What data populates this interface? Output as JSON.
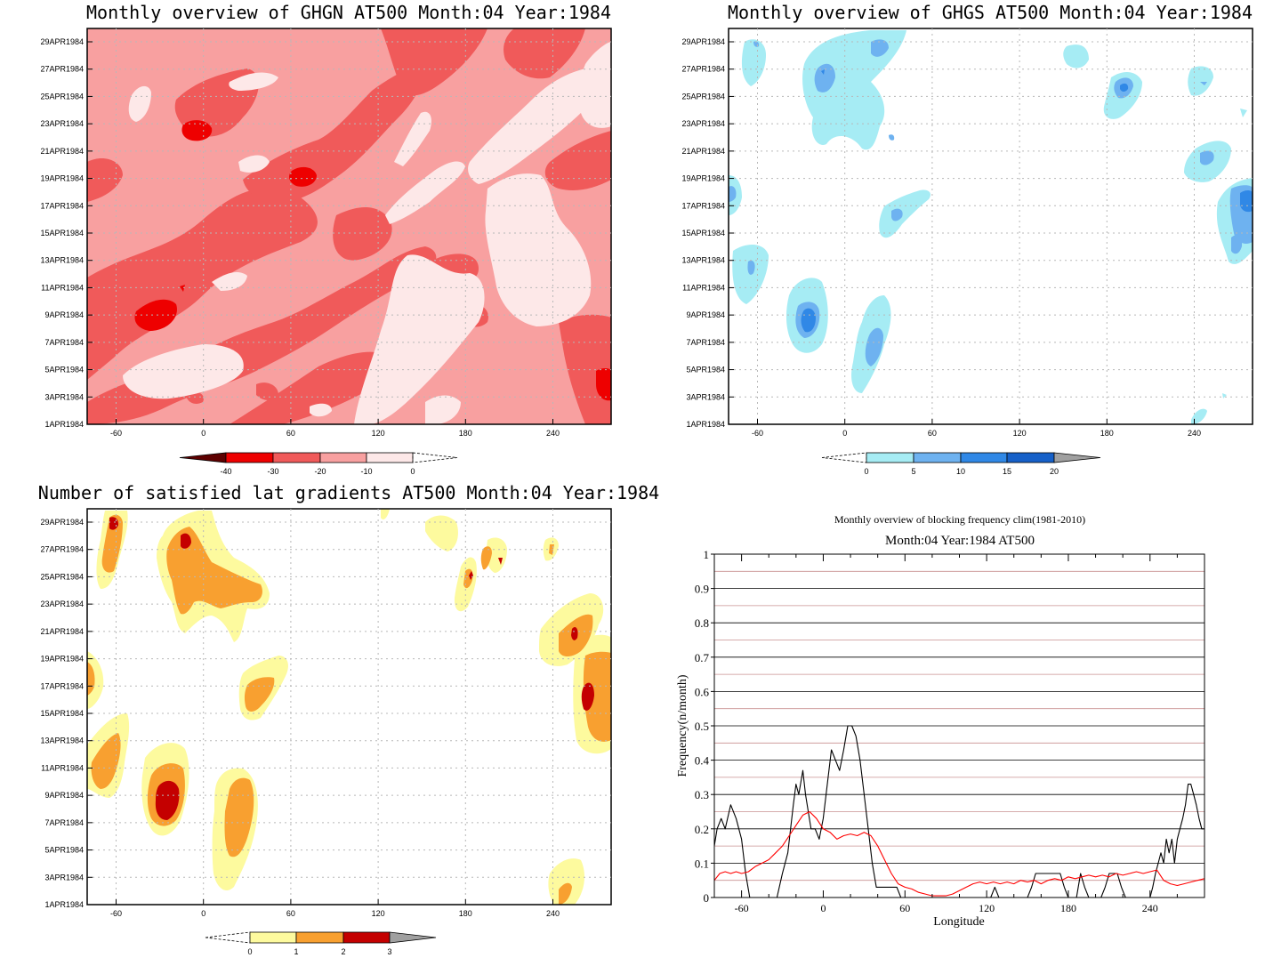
{
  "panels": [
    {
      "id": "ghgn",
      "title": "Monthly overview of GHGN AT500 Month:04 Year:1984",
      "type": "heatmap",
      "x_ticks": [
        "-60",
        "0",
        "60",
        "120",
        "180",
        "240"
      ],
      "y_ticks": [
        "1APR1984",
        "3APR1984",
        "5APR1984",
        "7APR1984",
        "9APR1984",
        "11APR1984",
        "13APR1984",
        "15APR1984",
        "17APR1984",
        "19APR1984",
        "21APR1984",
        "23APR1984",
        "25APR1984",
        "27APR1984",
        "29APR1984"
      ],
      "colorbar_labels": [
        "-40",
        "-30",
        "-20",
        "-10",
        "0"
      ],
      "colors": [
        "#5e0000",
        "#ee0000",
        "#f05a5a",
        "#f8a0a0",
        "#fde8e8"
      ]
    },
    {
      "id": "ghgs",
      "title": "Monthly overview of GHGS AT500 Month:04 Year:1984",
      "type": "heatmap",
      "x_ticks": [
        "-60",
        "0",
        "60",
        "120",
        "180",
        "240"
      ],
      "y_ticks": [
        "1APR1984",
        "3APR1984",
        "5APR1984",
        "7APR1984",
        "9APR1984",
        "11APR1984",
        "13APR1984",
        "15APR1984",
        "17APR1984",
        "19APR1984",
        "21APR1984",
        "23APR1984",
        "25APR1984",
        "27APR1984",
        "29APR1984"
      ],
      "colorbar_labels": [
        "0",
        "5",
        "10",
        "15",
        "20"
      ],
      "colors": [
        "#a6ecf4",
        "#6eb2f0",
        "#3088e6",
        "#1660c8",
        "#a0a0a0"
      ]
    },
    {
      "id": "lat",
      "title": "Number of satisfied lat gradients AT500 Month:04 Year:1984",
      "type": "heatmap",
      "x_ticks": [
        "-60",
        "0",
        "60",
        "120",
        "180",
        "240"
      ],
      "y_ticks": [
        "1APR1984",
        "3APR1984",
        "5APR1984",
        "7APR1984",
        "9APR1984",
        "11APR1984",
        "13APR1984",
        "15APR1984",
        "17APR1984",
        "19APR1984",
        "21APR1984",
        "23APR1984",
        "25APR1984",
        "27APR1984",
        "29APR1984"
      ],
      "colorbar_labels": [
        "0",
        "1",
        "2",
        "3"
      ],
      "colors": [
        "#fdfa9e",
        "#f8a030",
        "#c40000",
        "#a0a0a0"
      ]
    }
  ],
  "chart_data": {
    "type": "line",
    "title": "Monthly overview of blocking frequency clim(1981-2010)",
    "subtitle": "Month:04 Year:1984  AT500",
    "xlabel": "Longitude",
    "ylabel": "Frequency(n/month)",
    "xlim": [
      -80,
      280
    ],
    "ylim": [
      0,
      1
    ],
    "x_ticks": [
      "-60",
      "0",
      "60",
      "120",
      "180",
      "240"
    ],
    "y_ticks": [
      "0",
      "0.1",
      "0.2",
      "0.3",
      "0.4",
      "0.5",
      "0.6",
      "0.7",
      "0.8",
      "0.9",
      "1"
    ],
    "grid": true,
    "series": [
      {
        "color": "#000000",
        "x": [
          -80,
          -78,
          -75,
          -72,
          -68,
          -64,
          -60,
          -57,
          -54,
          -52,
          -48,
          -45,
          -42,
          -38,
          -34,
          -30,
          -26,
          -24,
          -22,
          -20,
          -18,
          -15,
          -13,
          -11,
          -9,
          -6,
          -3,
          0,
          3,
          6,
          9,
          12,
          15,
          18,
          21,
          24,
          27,
          30,
          33,
          36,
          39,
          42,
          45,
          48,
          51,
          54,
          57,
          60,
          63,
          66,
          69,
          72,
          75,
          78,
          81,
          84,
          87,
          90,
          93,
          96,
          99,
          102,
          105,
          108,
          111,
          114,
          117,
          120,
          123,
          126,
          129,
          132,
          135,
          138,
          141,
          144,
          147,
          150,
          153,
          156,
          159,
          162,
          165,
          168,
          171,
          174,
          177,
          180,
          183,
          186,
          189,
          192,
          195,
          198,
          201,
          204,
          207,
          210,
          213,
          216,
          219,
          222,
          225,
          228,
          231,
          234,
          236,
          238,
          240,
          242,
          244,
          246,
          248,
          250,
          252,
          254,
          256,
          258,
          260,
          262,
          264,
          266,
          268,
          270,
          272,
          274,
          276,
          278,
          280
        ],
        "y": [
          0.15,
          0.2,
          0.23,
          0.2,
          0.27,
          0.23,
          0.17,
          0.07,
          0.0,
          0.0,
          0.0,
          0.0,
          0.0,
          0.0,
          0.0,
          0.07,
          0.13,
          0.2,
          0.27,
          0.33,
          0.3,
          0.37,
          0.3,
          0.25,
          0.2,
          0.2,
          0.17,
          0.23,
          0.33,
          0.43,
          0.4,
          0.37,
          0.43,
          0.5,
          0.5,
          0.47,
          0.4,
          0.3,
          0.2,
          0.1,
          0.03,
          0.03,
          0.03,
          0.03,
          0.03,
          0.03,
          0.0,
          0.0,
          0.0,
          0.0,
          0.0,
          0.0,
          0.0,
          0.0,
          0.0,
          0.0,
          0.0,
          0.0,
          0.0,
          0.0,
          0.0,
          0.0,
          0.0,
          0.0,
          0.0,
          0.0,
          0.0,
          0.0,
          0.0,
          0.03,
          0.0,
          0.0,
          0.0,
          0.0,
          0.0,
          0.0,
          0.0,
          0.0,
          0.03,
          0.07,
          0.07,
          0.07,
          0.07,
          0.07,
          0.07,
          0.07,
          0.03,
          0.0,
          0.0,
          0.0,
          0.07,
          0.03,
          0.0,
          0.0,
          0.0,
          0.0,
          0.03,
          0.07,
          0.07,
          0.07,
          0.03,
          0.0,
          0.0,
          0.0,
          0.0,
          0.0,
          0.0,
          0.0,
          0.0,
          0.03,
          0.07,
          0.1,
          0.13,
          0.1,
          0.17,
          0.13,
          0.17,
          0.1,
          0.17,
          0.2,
          0.23,
          0.27,
          0.33,
          0.33,
          0.3,
          0.27,
          0.23,
          0.2,
          0.2
        ]
      },
      {
        "color": "#ff0000",
        "x": [
          -80,
          -76,
          -72,
          -68,
          -64,
          -60,
          -55,
          -50,
          -45,
          -40,
          -35,
          -30,
          -25,
          -20,
          -15,
          -10,
          -5,
          0,
          5,
          10,
          15,
          20,
          25,
          30,
          35,
          40,
          45,
          50,
          55,
          60,
          65,
          70,
          75,
          80,
          85,
          90,
          95,
          100,
          105,
          110,
          115,
          120,
          125,
          130,
          135,
          140,
          145,
          150,
          155,
          160,
          165,
          170,
          175,
          180,
          185,
          190,
          195,
          200,
          205,
          210,
          215,
          220,
          225,
          230,
          235,
          240,
          245,
          250,
          255,
          260,
          265,
          270,
          275,
          280
        ],
        "y": [
          0.05,
          0.07,
          0.075,
          0.07,
          0.075,
          0.07,
          0.075,
          0.09,
          0.1,
          0.11,
          0.13,
          0.15,
          0.18,
          0.21,
          0.24,
          0.25,
          0.23,
          0.2,
          0.19,
          0.17,
          0.18,
          0.185,
          0.18,
          0.19,
          0.18,
          0.15,
          0.11,
          0.07,
          0.04,
          0.03,
          0.025,
          0.015,
          0.01,
          0.005,
          0.005,
          0.005,
          0.01,
          0.02,
          0.03,
          0.04,
          0.045,
          0.04,
          0.045,
          0.04,
          0.045,
          0.04,
          0.05,
          0.045,
          0.05,
          0.04,
          0.05,
          0.055,
          0.05,
          0.06,
          0.055,
          0.06,
          0.065,
          0.06,
          0.065,
          0.06,
          0.07,
          0.065,
          0.07,
          0.075,
          0.07,
          0.075,
          0.08,
          0.05,
          0.04,
          0.035,
          0.04,
          0.045,
          0.05,
          0.055
        ]
      }
    ]
  }
}
